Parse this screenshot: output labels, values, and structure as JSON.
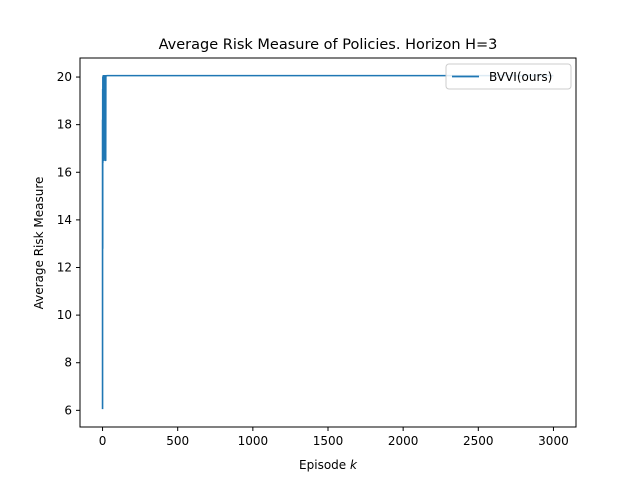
{
  "chart_data": {
    "type": "line",
    "title": "Average Risk Measure of Policies. Horizon H=3",
    "xlabel_text": "Episode ",
    "xlabel_var": "k",
    "ylabel": "Average Risk Measure",
    "xlim": [
      -150,
      3150
    ],
    "ylim": [
      5.3,
      20.8
    ],
    "xticks": [
      0,
      500,
      1000,
      1500,
      2000,
      2500,
      3000
    ],
    "yticks": [
      6,
      8,
      10,
      12,
      14,
      16,
      18,
      20
    ],
    "legend": {
      "position": "top-right",
      "entries": [
        "BVVI(ours)"
      ]
    },
    "grid": false,
    "series": [
      {
        "name": "BVVI(ours)",
        "color": "#1f77b4",
        "x": [
          0,
          0,
          1,
          1,
          2,
          2,
          3,
          3,
          4,
          4,
          5,
          5,
          6,
          6,
          7,
          8,
          9,
          10,
          11,
          12,
          13,
          14,
          15,
          16,
          17,
          18,
          19,
          20,
          21,
          22,
          25,
          30,
          40,
          60,
          100,
          300,
          1000,
          2000,
          3000
        ],
        "y": [
          6.05,
          18.2,
          12.8,
          19.5,
          16.4,
          20.0,
          17.2,
          20.0,
          16.5,
          20.05,
          18.0,
          20.05,
          16.5,
          20.05,
          17.0,
          20.05,
          16.6,
          20.05,
          17.5,
          20.05,
          16.8,
          20.05,
          17.6,
          20.05,
          16.5,
          20.05,
          17.3,
          20.05,
          16.5,
          20.05,
          20.05,
          20.06,
          20.06,
          20.06,
          20.06,
          20.06,
          20.06,
          20.06,
          20.06
        ]
      }
    ]
  }
}
